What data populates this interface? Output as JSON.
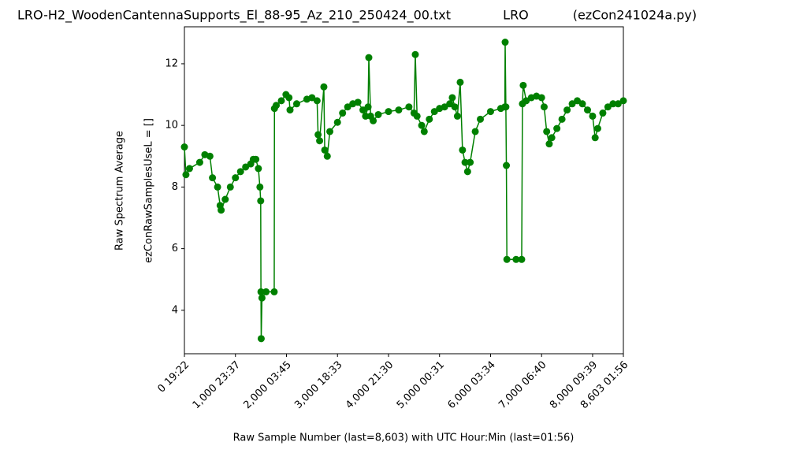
{
  "chart_data": {
    "type": "line",
    "title": "LRO-H2_WoodenCantennaSupports_El_88-95_Az_210_250424_00.txt             LRO           (ezCon241024a.py)",
    "xlabel": "Raw Sample Number (last=8,603) with UTC Hour:Min (last=01:56)",
    "ylabel": [
      "Raw Spectrum Average",
      "ezConRawSamplesUseL = []"
    ],
    "xlim": [
      0,
      8603
    ],
    "ylim": [
      2.59,
      13.2
    ],
    "xticks": [
      {
        "value": 0,
        "label": "0  19:22"
      },
      {
        "value": 1000,
        "label": "1,000  23:37"
      },
      {
        "value": 2000,
        "label": "2,000  03:45"
      },
      {
        "value": 3000,
        "label": "3,000  18:33"
      },
      {
        "value": 4000,
        "label": "4,000  21:30"
      },
      {
        "value": 5000,
        "label": "5,000  00:31"
      },
      {
        "value": 6000,
        "label": "6,000  03:34"
      },
      {
        "value": 7000,
        "label": "7,000  06:40"
      },
      {
        "value": 8000,
        "label": "8,000  09:39"
      },
      {
        "value": 8603,
        "label": "8,603  01:56"
      }
    ],
    "yticks": [
      4,
      6,
      8,
      10,
      12
    ],
    "grid": false,
    "series": [
      {
        "color": "#008000",
        "x": [
          0,
          30,
          100,
          300,
          400,
          500,
          550,
          650,
          700,
          720,
          800,
          900,
          1000,
          1100,
          1200,
          1300,
          1350,
          1400,
          1450,
          1480,
          1495,
          1500,
          1505,
          1520,
          1600,
          1760,
          1765,
          1800,
          1900,
          1990,
          2050,
          2070,
          2200,
          2400,
          2500,
          2600,
          2620,
          2650,
          2733,
          2750,
          2800,
          2850,
          3000,
          3100,
          3200,
          3300,
          3400,
          3500,
          3550,
          3600,
          3614,
          3650,
          3700,
          3800,
          4000,
          4200,
          4400,
          4500,
          4525,
          4560,
          4650,
          4700,
          4800,
          4900,
          5000,
          5100,
          5200,
          5250,
          5300,
          5350,
          5405,
          5450,
          5500,
          5550,
          5600,
          5700,
          5800,
          6000,
          6200,
          6280,
          6286,
          6300,
          6310,
          6320,
          6500,
          6610,
          6625,
          6640,
          6700,
          6800,
          6900,
          7000,
          7050,
          7100,
          7150,
          7200,
          7300,
          7400,
          7500,
          7600,
          7700,
          7800,
          7900,
          8000,
          8050,
          8100,
          8200,
          8300,
          8400,
          8500,
          8603
        ],
        "values": [
          9.3,
          8.4,
          8.6,
          8.8,
          9.05,
          9.0,
          8.3,
          8.0,
          7.4,
          7.25,
          7.6,
          8.0,
          8.3,
          8.5,
          8.65,
          8.75,
          8.9,
          8.9,
          8.6,
          8.0,
          7.55,
          4.6,
          3.08,
          4.4,
          4.6,
          4.6,
          10.55,
          10.65,
          10.8,
          11.0,
          10.9,
          10.5,
          10.7,
          10.85,
          10.9,
          10.8,
          9.7,
          9.5,
          11.25,
          9.2,
          9.0,
          9.8,
          10.1,
          10.4,
          10.6,
          10.7,
          10.75,
          10.5,
          10.3,
          10.6,
          12.2,
          10.3,
          10.15,
          10.35,
          10.45,
          10.5,
          10.6,
          10.4,
          12.3,
          10.3,
          10.0,
          9.8,
          10.2,
          10.45,
          10.55,
          10.6,
          10.7,
          10.9,
          10.6,
          10.3,
          11.4,
          9.2,
          8.8,
          8.5,
          8.8,
          9.8,
          10.2,
          10.45,
          10.55,
          10.6,
          12.7,
          10.6,
          8.7,
          5.65,
          5.65,
          5.65,
          10.7,
          11.3,
          10.8,
          10.9,
          10.95,
          10.9,
          10.6,
          9.8,
          9.4,
          9.6,
          9.9,
          10.2,
          10.5,
          10.7,
          10.8,
          10.7,
          10.5,
          10.3,
          9.6,
          9.9,
          10.4,
          10.6,
          10.7,
          10.7,
          10.8
        ]
      }
    ]
  }
}
